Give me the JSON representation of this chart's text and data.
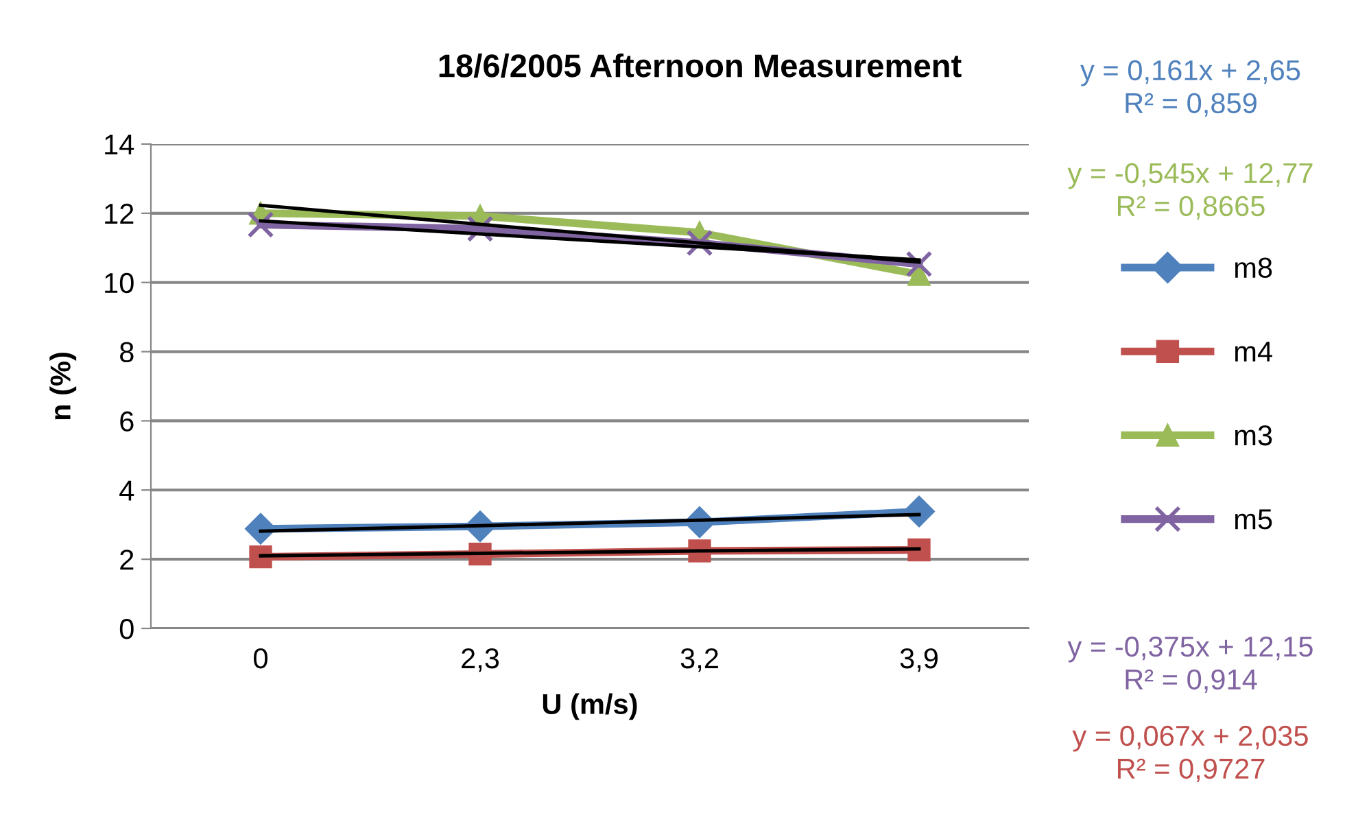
{
  "chart_data": {
    "type": "line",
    "title": "18/6/2005 Afternoon Measurement",
    "xlabel": "U (m/s)",
    "ylabel": "n (%)",
    "categories": [
      "0",
      "2,3",
      "3,2",
      "3,9"
    ],
    "ylim": [
      0,
      14
    ],
    "yticks": [
      0,
      2,
      4,
      6,
      8,
      10,
      12,
      14
    ],
    "grid": "y",
    "legend": "right",
    "series": [
      {
        "name": "m8",
        "color": "#4f81bd",
        "marker": "diamond",
        "values": [
          2.88,
          2.95,
          3.07,
          3.38
        ]
      },
      {
        "name": "m4",
        "color": "#c0504d",
        "marker": "square",
        "values": [
          2.07,
          2.15,
          2.24,
          2.27
        ]
      },
      {
        "name": "m3",
        "color": "#9bbb59",
        "marker": "triangle",
        "values": [
          12.0,
          11.92,
          11.44,
          10.23
        ]
      },
      {
        "name": "m5",
        "color": "#8064a2",
        "marker": "cross",
        "values": [
          11.67,
          11.55,
          11.14,
          10.53
        ]
      },
      {
        "color": "#000000",
        "marker": "none",
        "values": [
          2.81,
          2.97,
          3.13,
          3.29
        ]
      },
      {
        "color": "#000000",
        "marker": "none",
        "values": [
          2.1,
          2.17,
          2.24,
          2.3
        ]
      },
      {
        "color": "#000000",
        "marker": "none",
        "values": [
          12.23,
          11.68,
          11.14,
          10.59
        ]
      },
      {
        "color": "#000000",
        "marker": "none",
        "values": [
          11.78,
          11.4,
          11.03,
          10.65
        ]
      }
    ],
    "annotations": [
      "y = 0,161x + 2,65\nR² = 0,859",
      "y = -0,545x + 12,77\nR² = 0,8665",
      "y = -0,375x + 12,15\nR² = 0,914",
      "y = 0,067x + 2,035\nR² = 0,9727"
    ]
  }
}
